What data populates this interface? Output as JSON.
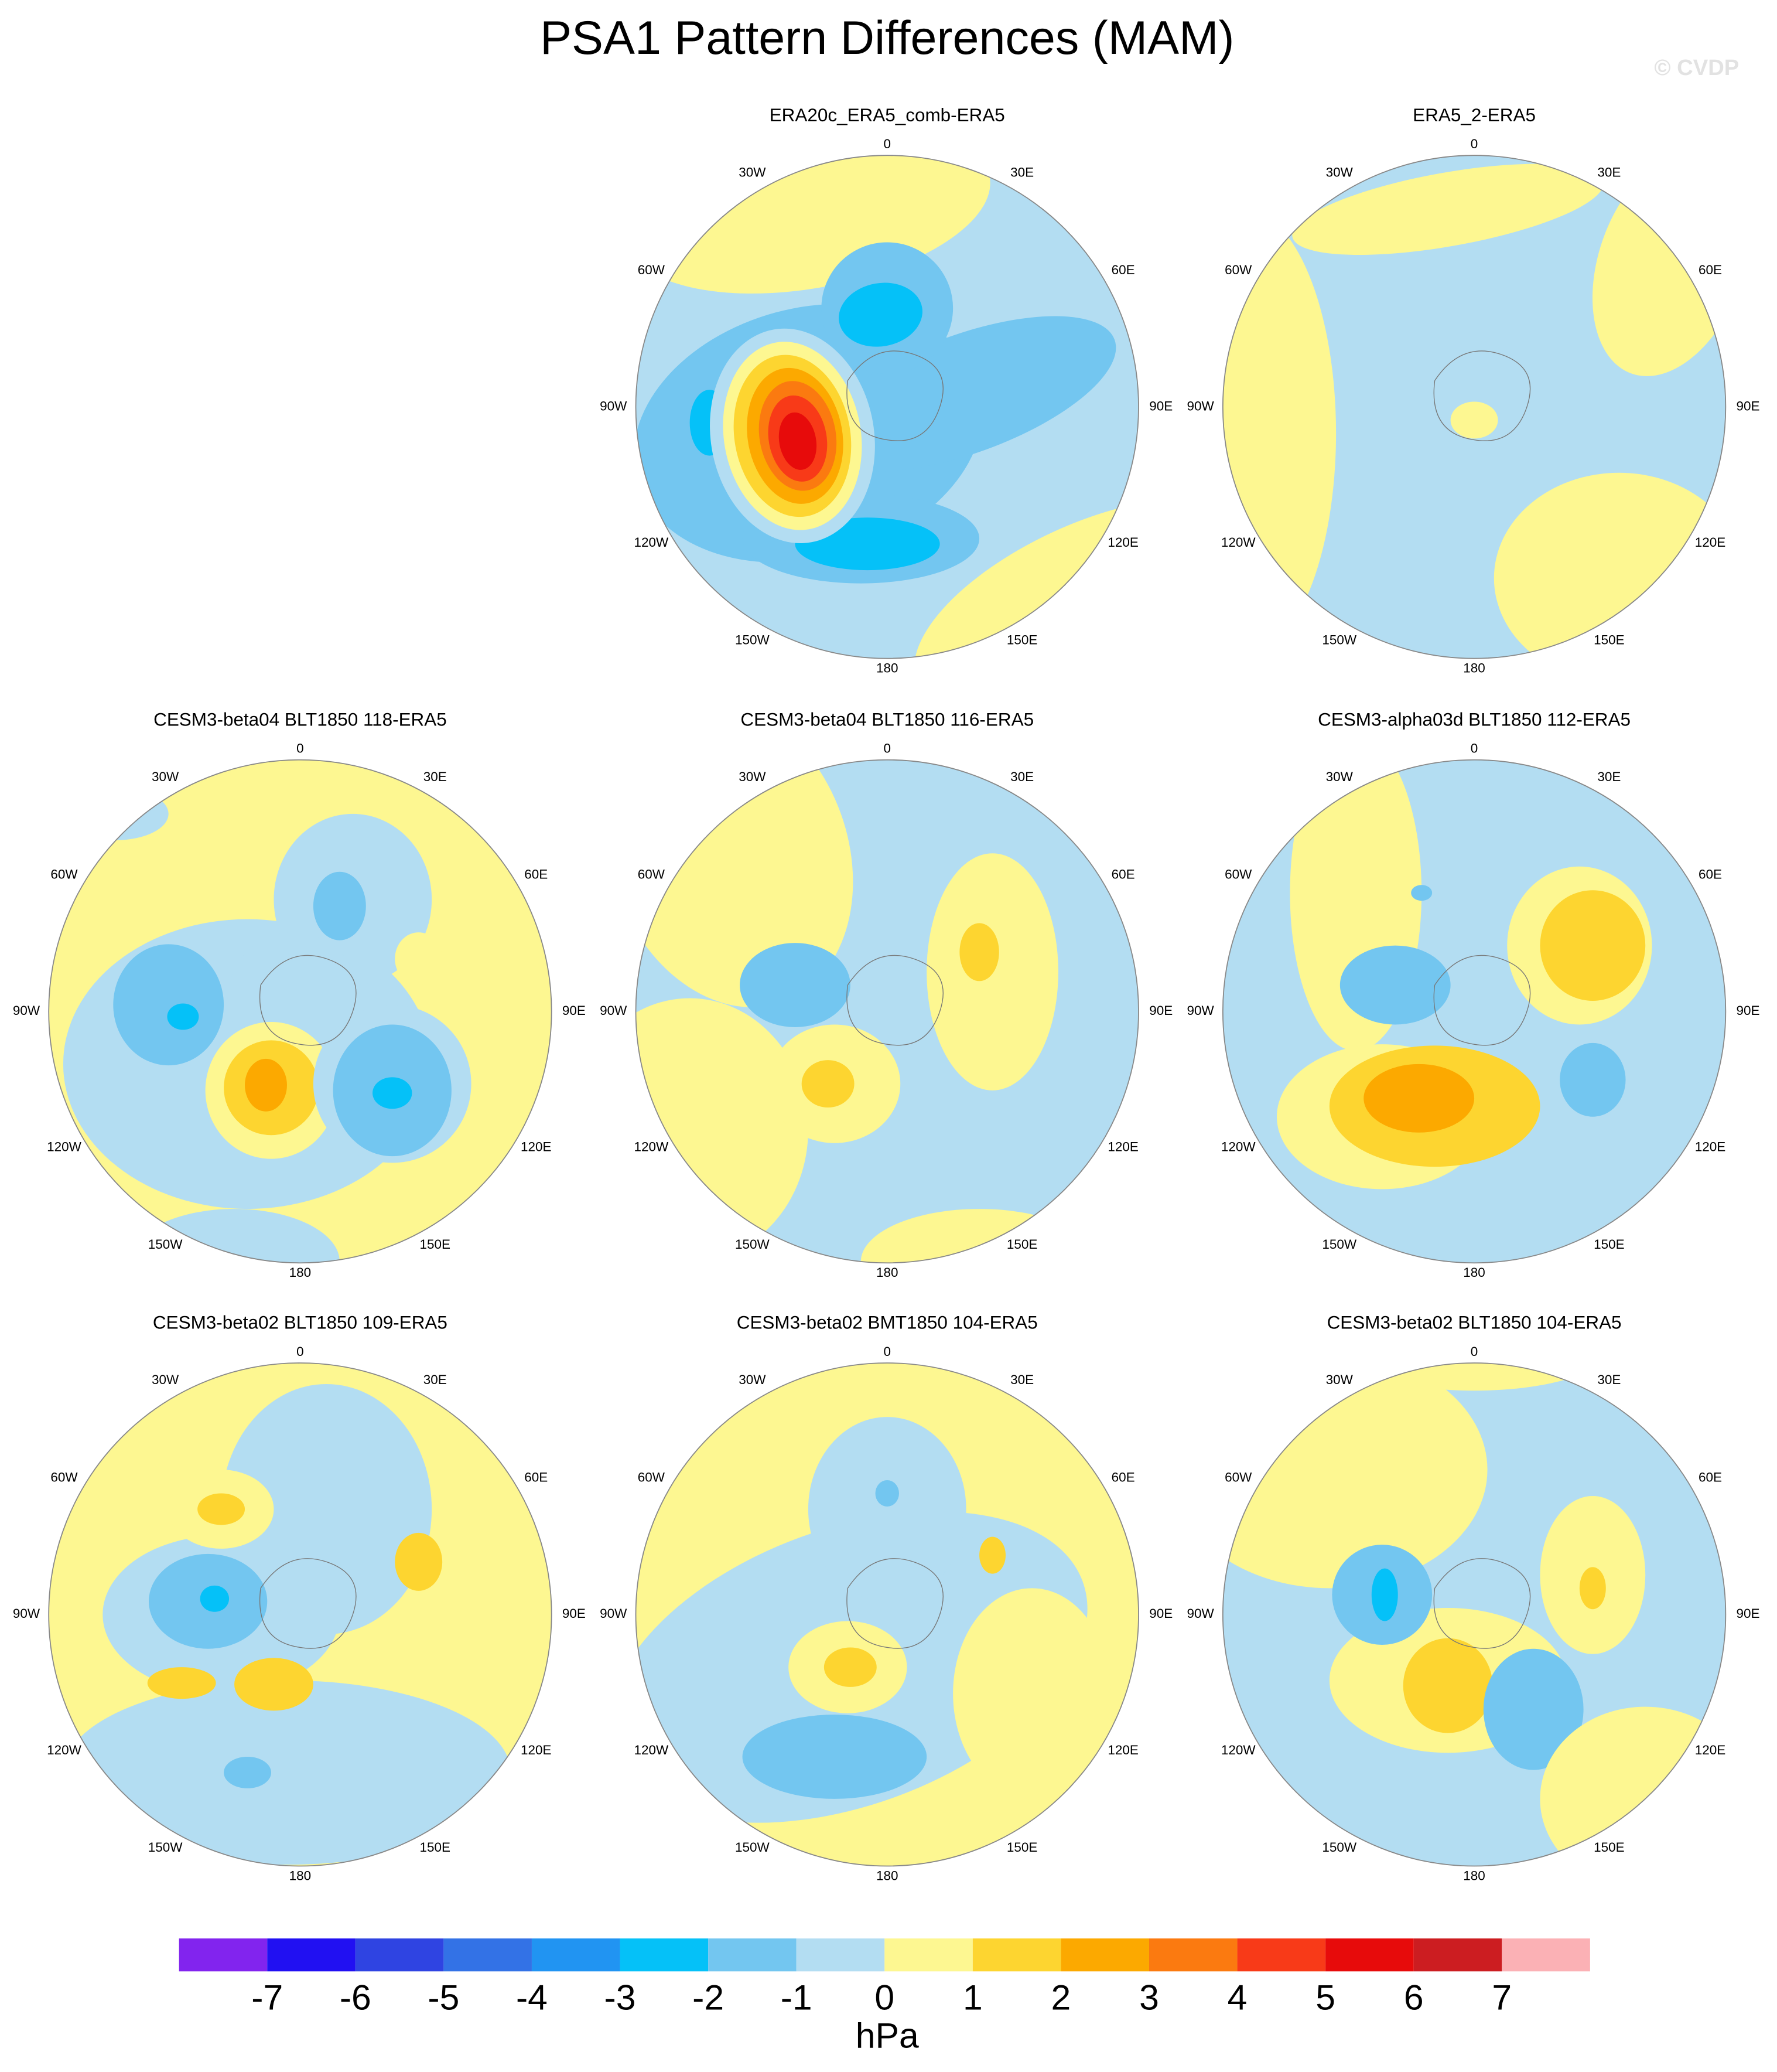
{
  "title": "PSA1 Pattern Differences (MAM)",
  "watermark": "© CVDP",
  "panels": [
    {
      "title": "ERA20c_ERA5_comb-ERA5"
    },
    {
      "title": "ERA5_2-ERA5"
    },
    {
      "title": "CESM3-beta04 BLT1850 118-ERA5"
    },
    {
      "title": "CESM3-beta04 BLT1850 116-ERA5"
    },
    {
      "title": "CESM3-alpha03d BLT1850 112-ERA5"
    },
    {
      "title": "CESM3-beta02 BLT1850 109-ERA5"
    },
    {
      "title": "CESM3-beta02 BMT1850 104-ERA5"
    },
    {
      "title": "CESM3-beta02 BLT1850 104-ERA5"
    }
  ],
  "lon_labels": [
    "0",
    "30E",
    "60E",
    "90E",
    "120E",
    "150E",
    "180",
    "150W",
    "120W",
    "90W",
    "60W",
    "30W"
  ],
  "colorbar": {
    "levels": [
      -7,
      -6,
      -5,
      -4,
      -3,
      -2,
      -1,
      0,
      1,
      2,
      3,
      4,
      5,
      6,
      7
    ],
    "colors": [
      "#8224ee",
      "#2110f2",
      "#2f44e2",
      "#3372e6",
      "#2194f2",
      "#05c1f8",
      "#73c6f0",
      "#b3ddf2",
      "#fdf791",
      "#fdd530",
      "#fca900",
      "#fb7a10",
      "#f83a18",
      "#e70b0b",
      "#cc1d21",
      "#fbb1b5"
    ],
    "label": "hPa"
  }
}
